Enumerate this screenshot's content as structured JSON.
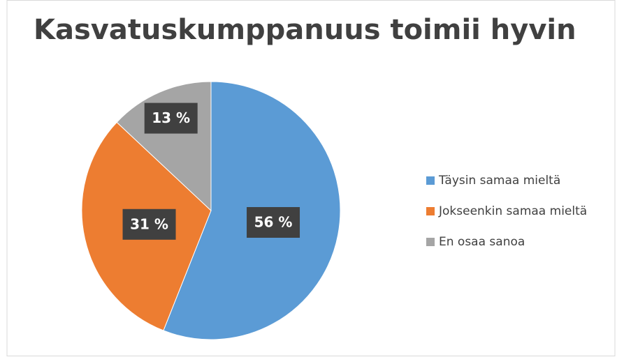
{
  "chart_data": {
    "type": "pie",
    "title": "Kasvatuskumppanuus toimii hyvin",
    "categories": [
      "Täysin samaa mieltä",
      "Jokseenkin samaa mieltä",
      "En osaa sanoa"
    ],
    "values": [
      56,
      31,
      13
    ],
    "value_labels": [
      "56 %",
      "31 %",
      "13 %"
    ],
    "colors": [
      "#5b9bd5",
      "#ed7d31",
      "#a5a5a5"
    ],
    "legend": "right"
  }
}
